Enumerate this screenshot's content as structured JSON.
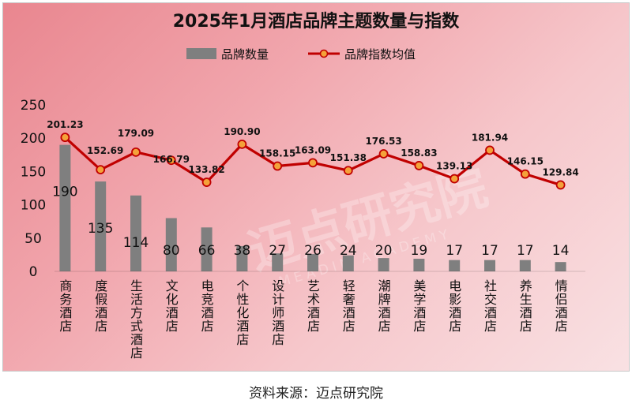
{
  "chart_data": {
    "type": "bar+line",
    "title": "2025年1月酒店品牌主题数量与指数",
    "categories": [
      "商务酒店",
      "度假酒店",
      "生活方式酒店",
      "文化酒店",
      "电竞酒店",
      "个性化酒店",
      "设计师酒店",
      "艺术酒店",
      "轻奢酒店",
      "潮牌酒店",
      "美学酒店",
      "电影酒店",
      "社交酒店",
      "养生酒店",
      "情侣酒店"
    ],
    "series": [
      {
        "name": "品牌数量",
        "type": "bar",
        "color": "#7f7f7f",
        "values": [
          190,
          135,
          114,
          80,
          66,
          38,
          27,
          26,
          24,
          20,
          19,
          17,
          17,
          17,
          14
        ],
        "labels": [
          "190",
          "135",
          "114",
          "80",
          "66",
          "38",
          "27",
          "26",
          "24",
          "20",
          "19",
          "17",
          "17",
          "17",
          "14"
        ]
      },
      {
        "name": "品牌指数均值",
        "type": "line",
        "color": "#c00000",
        "marker_color": "#f4a23a",
        "values": [
          201.23,
          152.69,
          179.09,
          166.79,
          133.82,
          190.9,
          158.15,
          163.09,
          151.38,
          176.53,
          158.83,
          139.13,
          181.94,
          146.15,
          129.84
        ],
        "labels": [
          "201.23",
          "152.69",
          "179.09",
          "166.79",
          "133.82",
          "190.90",
          "158.15",
          "163.09",
          "151.38",
          "176.53",
          "158.83",
          "139.13",
          "181.94",
          "146.15",
          "129.84"
        ]
      }
    ],
    "yticks": [
      "0",
      "50",
      "100",
      "150",
      "200",
      "250"
    ],
    "ylim": [
      0,
      250
    ],
    "legend_position": "top-center",
    "grid": false
  },
  "watermark": {
    "text": "迈点研究院",
    "subtext": "MEADIN ACADEMY"
  },
  "source": "资料来源：迈点研究院"
}
